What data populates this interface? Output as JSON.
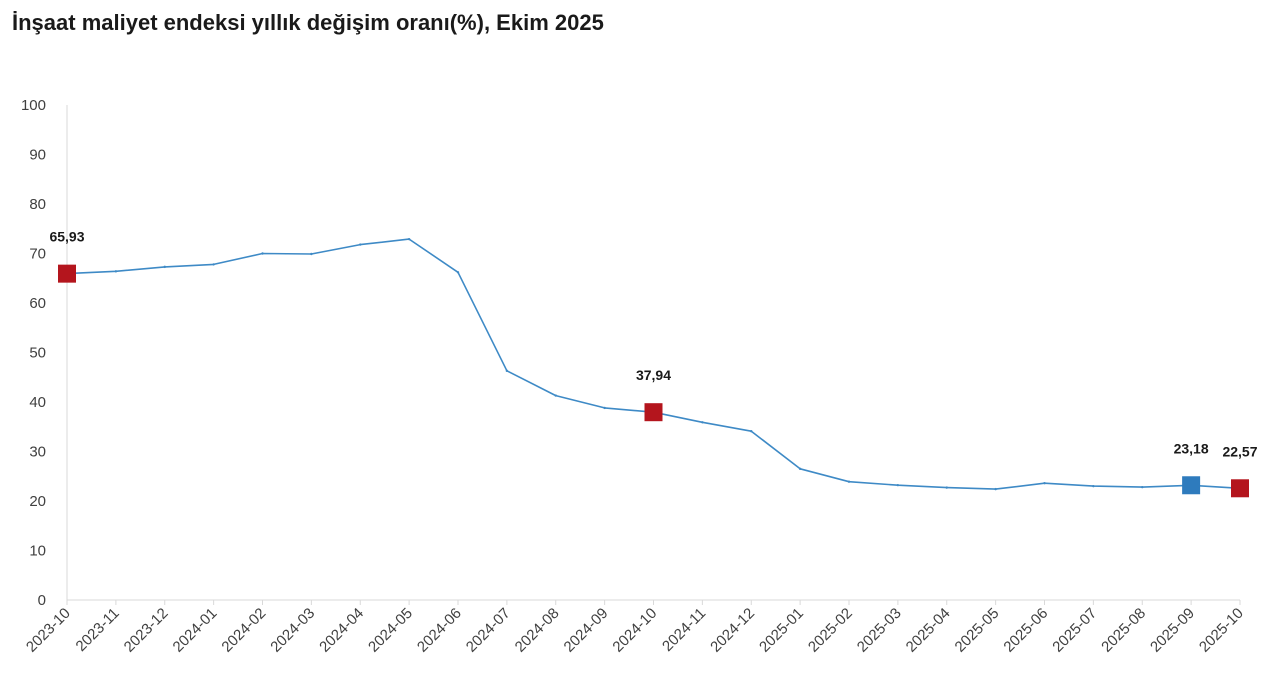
{
  "title": "İnşaat maliyet endeksi yıllık değişim oranı(%), Ekim 2025",
  "colors": {
    "line": "#3e8ac6",
    "marker_red": "#b4151d",
    "marker_blue": "#2e7bbd",
    "axis": "#d9d9d9"
  },
  "chart_data": {
    "type": "line",
    "title": "İnşaat maliyet endeksi yıllık değişim oranı(%), Ekim 2025",
    "xlabel": "",
    "ylabel": "",
    "ylim": [
      0,
      100
    ],
    "yticks": [
      0,
      10,
      20,
      30,
      40,
      50,
      60,
      70,
      80,
      90,
      100
    ],
    "grid": false,
    "categories": [
      "2023-10",
      "2023-11",
      "2023-12",
      "2024-01",
      "2024-02",
      "2024-03",
      "2024-04",
      "2024-05",
      "2024-06",
      "2024-07",
      "2024-08",
      "2024-09",
      "2024-10",
      "2024-11",
      "2024-12",
      "2025-01",
      "2025-02",
      "2025-03",
      "2025-04",
      "2025-05",
      "2025-06",
      "2025-07",
      "2025-08",
      "2025-09",
      "2025-10"
    ],
    "series": [
      {
        "values": [
          65.93,
          66.4,
          67.3,
          67.8,
          70.0,
          69.9,
          71.8,
          72.9,
          66.2,
          46.3,
          41.3,
          38.8,
          37.94,
          35.9,
          34.1,
          26.5,
          23.9,
          23.2,
          22.7,
          22.4,
          23.6,
          23.0,
          22.8,
          23.18,
          22.57
        ]
      }
    ],
    "highlighted_points": [
      {
        "category": "2023-10",
        "label": "65,93",
        "color": "red"
      },
      {
        "category": "2024-10",
        "label": "37,94",
        "color": "red"
      },
      {
        "category": "2025-09",
        "label": "23,18",
        "color": "blue"
      },
      {
        "category": "2025-10",
        "label": "22,57",
        "color": "red"
      }
    ]
  }
}
